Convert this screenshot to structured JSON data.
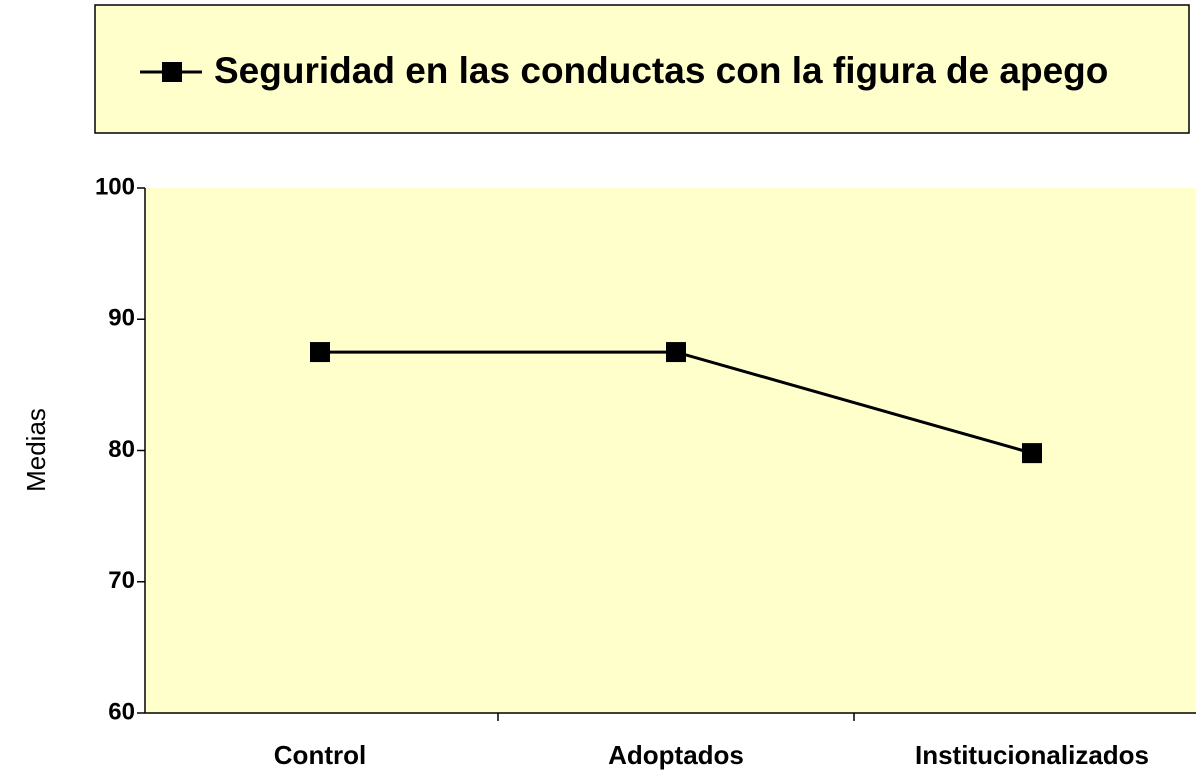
{
  "chart_data": {
    "type": "line",
    "categories": [
      "Control",
      "Adoptados",
      "Institucionalizados"
    ],
    "series": [
      {
        "name": "Seguridad en las conductas con la figura de apego",
        "color": "#000000",
        "values": [
          87.5,
          87.5,
          79.8
        ]
      }
    ],
    "ylabel": "Medias",
    "ylim": [
      60,
      100
    ],
    "yticks": [
      60,
      70,
      80,
      90,
      100
    ],
    "grid": false,
    "legend": "top"
  }
}
